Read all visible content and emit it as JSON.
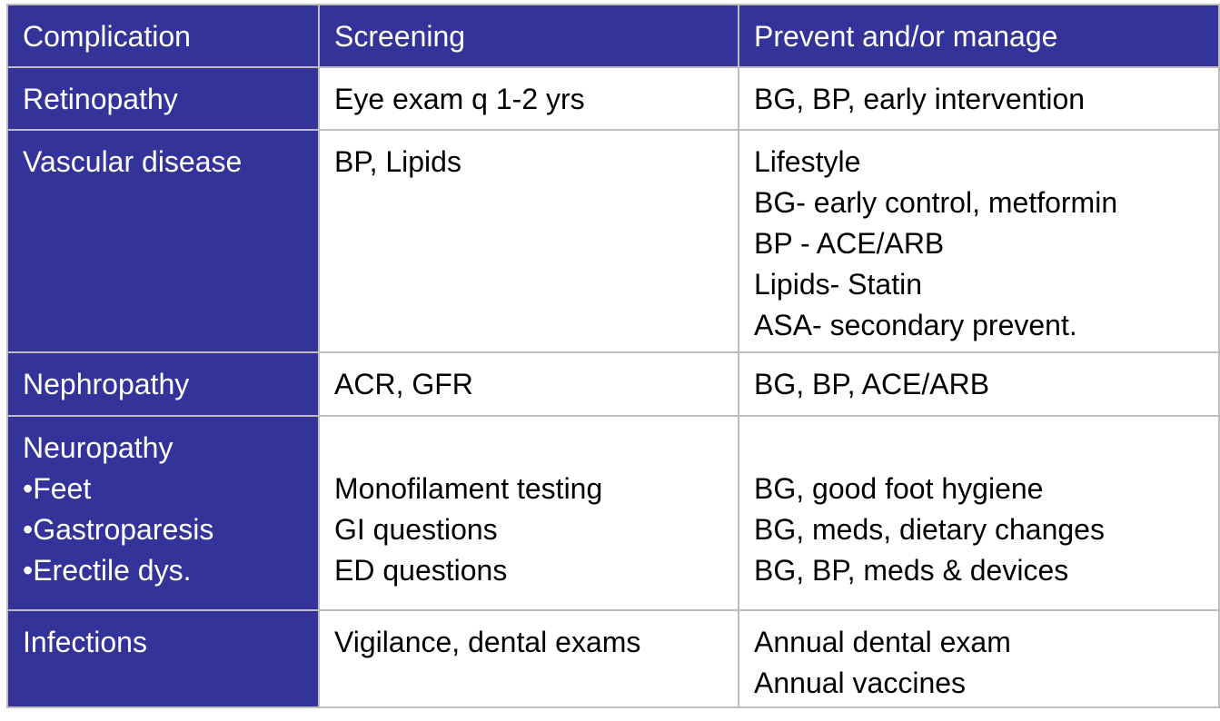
{
  "colors": {
    "header_bg": "#333399",
    "border": "#bdbdbd"
  },
  "headers": [
    "Complication",
    "Screening",
    "Prevent and/or manage"
  ],
  "rows": [
    {
      "complication": [
        "Retinopathy"
      ],
      "screening": [
        "Eye exam q 1-2 yrs"
      ],
      "manage": [
        "BG, BP, early intervention"
      ]
    },
    {
      "complication": [
        "Vascular disease"
      ],
      "screening": [
        "BP, Lipids"
      ],
      "manage": [
        "Lifestyle",
        "BG- early control, metformin",
        "BP - ACE/ARB",
        "Lipids- Statin",
        "ASA- secondary prevent."
      ]
    },
    {
      "complication": [
        "Nephropathy"
      ],
      "screening": [
        "ACR, GFR"
      ],
      "manage": [
        "BG, BP, ACE/ARB"
      ]
    },
    {
      "complication": [
        "Neuropathy",
        "•Feet",
        "•Gastroparesis",
        "•Erectile dys."
      ],
      "screening": [
        "",
        "Monofilament testing",
        "GI questions",
        "ED questions"
      ],
      "manage": [
        "",
        "BG, good foot hygiene",
        "BG, meds, dietary changes",
        "BG, BP, meds & devices"
      ]
    },
    {
      "complication": [
        "Infections"
      ],
      "screening": [
        "Vigilance, dental exams"
      ],
      "manage": [
        "Annual dental exam",
        "Annual vaccines"
      ]
    }
  ]
}
